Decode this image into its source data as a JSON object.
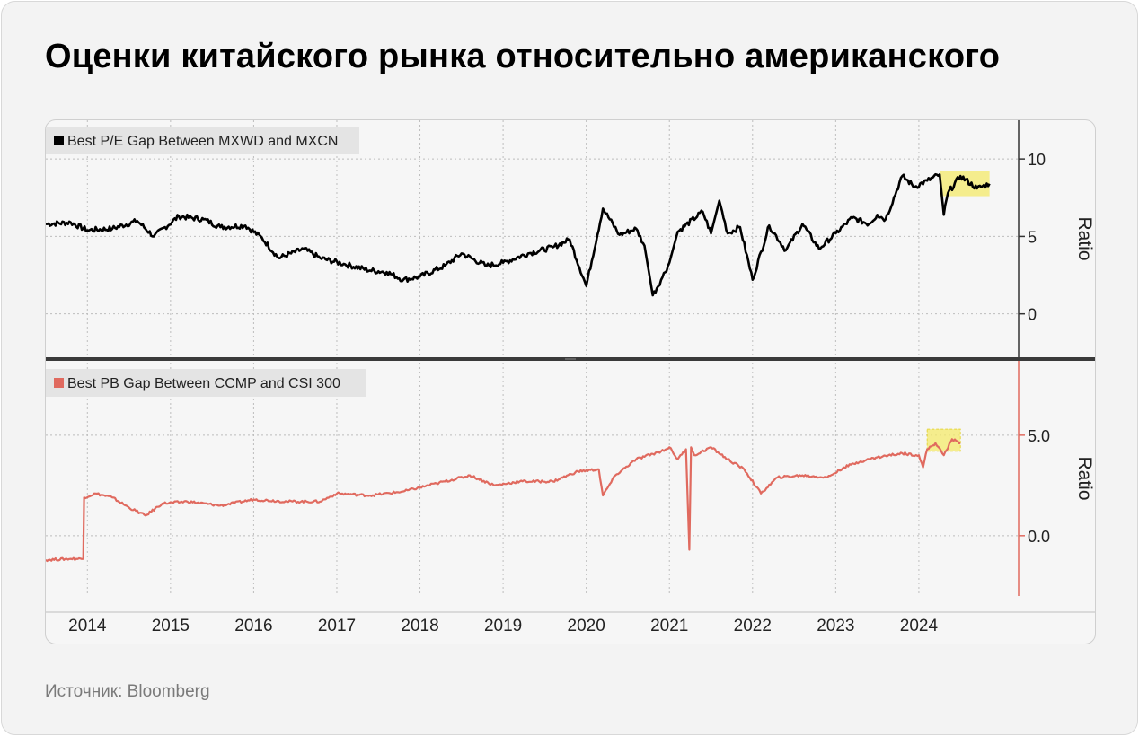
{
  "title": "Оценки китайского рынка относительно американского",
  "source": "Источник: Bloomberg",
  "colors": {
    "series1": "#000000",
    "series2": "#e06a5f",
    "highlight": "#f4ea6a",
    "grid": "#bdbdbd"
  },
  "chart_data": [
    {
      "type": "line",
      "legend": "Best P/E Gap Between MXWD and MXCN",
      "ylabel": "Ratio",
      "ylim": [
        -2.8,
        12.5
      ],
      "yticks": [
        0,
        5,
        10
      ],
      "ytick_labels": [
        "0",
        "5",
        "10"
      ],
      "highlight_range": {
        "x": [
          2024.25,
          2024.85
        ],
        "y": [
          7.6,
          9.2
        ]
      },
      "x": [
        2013.5,
        2013.8,
        2014.0,
        2014.3,
        2014.6,
        2014.8,
        2015.1,
        2015.4,
        2015.6,
        2015.9,
        2016.1,
        2016.3,
        2016.6,
        2016.8,
        2017.1,
        2017.4,
        2017.6,
        2017.8,
        2018.0,
        2018.3,
        2018.5,
        2018.8,
        2019.0,
        2019.3,
        2019.6,
        2019.8,
        2020.0,
        2020.2,
        2020.4,
        2020.6,
        2020.7,
        2020.8,
        2020.9,
        2021.0,
        2021.1,
        2021.4,
        2021.5,
        2021.6,
        2021.7,
        2021.85,
        2022.0,
        2022.2,
        2022.4,
        2022.6,
        2022.8,
        2023.0,
        2023.2,
        2023.4,
        2023.5,
        2023.6,
        2023.8,
        2023.95,
        2024.1,
        2024.25,
        2024.3,
        2024.35,
        2024.5,
        2024.7,
        2024.85
      ],
      "y": [
        5.8,
        5.9,
        5.4,
        5.5,
        6.0,
        5.0,
        6.3,
        6.1,
        5.6,
        5.7,
        4.9,
        3.6,
        4.2,
        3.6,
        3.2,
        2.8,
        2.7,
        2.2,
        2.4,
        3.1,
        3.9,
        3.1,
        3.3,
        3.9,
        4.3,
        4.8,
        1.8,
        6.8,
        5.1,
        5.5,
        4.4,
        1.2,
        2.2,
        3.3,
        5.3,
        6.6,
        5.2,
        7.3,
        5.2,
        5.6,
        2.2,
        5.7,
        4.1,
        5.8,
        4.2,
        5.2,
        6.2,
        5.8,
        6.4,
        6.1,
        8.9,
        8.2,
        8.6,
        9.0,
        6.4,
        7.8,
        8.9,
        8.1,
        8.4
      ]
    },
    {
      "type": "line",
      "legend": "Best PB Gap Between CCMP and CSI 300",
      "ylabel": "Ratio",
      "ylim": [
        -3.0,
        8.7
      ],
      "yticks": [
        0,
        5
      ],
      "ytick_labels": [
        "0.0",
        "5.0"
      ],
      "highlight_range": {
        "x": [
          2024.1,
          2024.5
        ],
        "y": [
          4.2,
          5.3
        ]
      },
      "x": [
        2013.5,
        2013.8,
        2013.95,
        2013.96,
        2014.1,
        2014.3,
        2014.5,
        2014.7,
        2014.9,
        2015.2,
        2015.6,
        2016.0,
        2016.4,
        2016.8,
        2017.0,
        2017.4,
        2017.8,
        2018.2,
        2018.6,
        2018.9,
        2019.2,
        2019.6,
        2019.9,
        2020.15,
        2020.2,
        2020.35,
        2020.6,
        2020.9,
        2021.0,
        2021.1,
        2021.2,
        2021.24,
        2021.26,
        2021.3,
        2021.5,
        2021.7,
        2021.9,
        2022.1,
        2022.3,
        2022.6,
        2022.9,
        2023.1,
        2023.3,
        2023.5,
        2023.8,
        2024.0,
        2024.05,
        2024.1,
        2024.2,
        2024.3,
        2024.4,
        2024.5
      ],
      "y": [
        -1.2,
        -1.15,
        -1.15,
        1.9,
        2.1,
        1.9,
        1.4,
        1.0,
        1.6,
        1.7,
        1.5,
        1.8,
        1.7,
        1.7,
        2.1,
        2.0,
        2.2,
        2.6,
        3.0,
        2.5,
        2.7,
        2.7,
        3.2,
        3.3,
        2.0,
        3.0,
        3.8,
        4.2,
        4.4,
        3.8,
        4.3,
        -0.7,
        4.4,
        4.0,
        4.4,
        3.8,
        3.3,
        2.1,
        2.9,
        3.0,
        2.9,
        3.4,
        3.7,
        3.9,
        4.1,
        4.0,
        3.4,
        4.3,
        4.6,
        4.0,
        4.8,
        4.6
      ]
    }
  ],
  "xaxis": {
    "range": [
      2013.5,
      2025.2
    ],
    "ticks": [
      2014,
      2015,
      2016,
      2017,
      2018,
      2019,
      2020,
      2021,
      2022,
      2023,
      2024
    ],
    "tick_labels": [
      "2014",
      "2015",
      "2016",
      "2017",
      "2018",
      "2019",
      "2020",
      "2021",
      "2022",
      "2023",
      "2024"
    ]
  }
}
